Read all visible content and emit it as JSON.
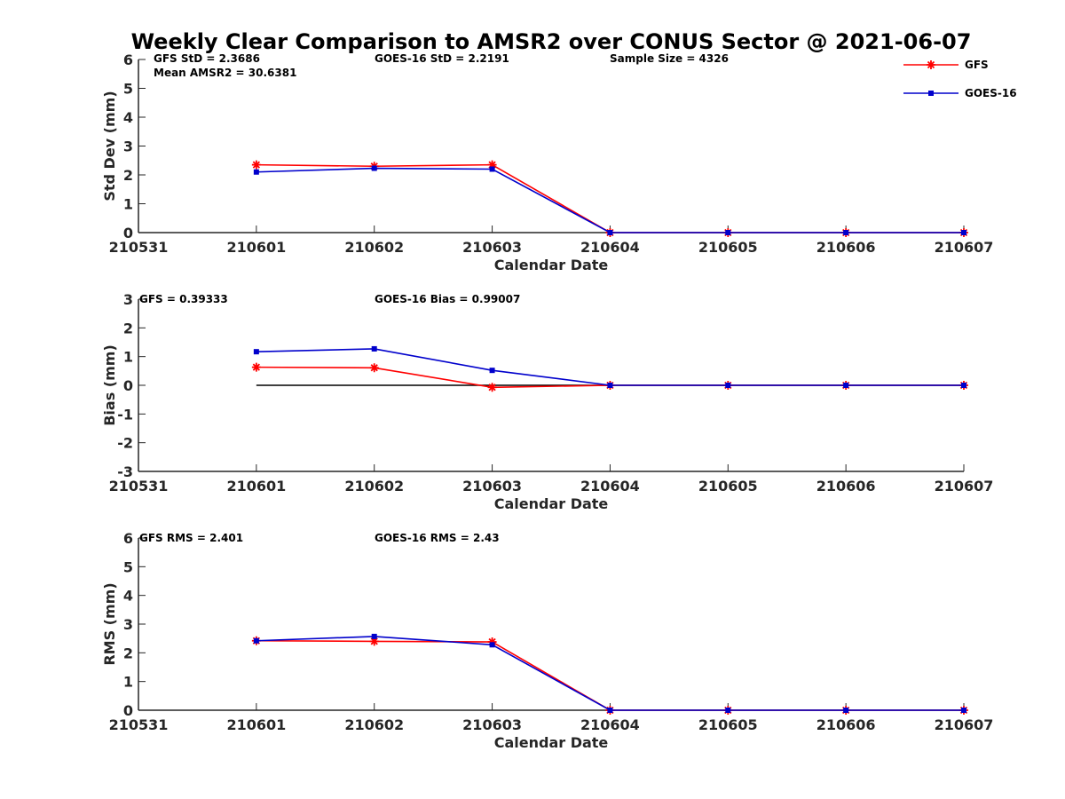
{
  "chart_data": {
    "type": "line",
    "title": "Weekly Clear Comparison to AMSR2 over CONUS Sector @ 2021-06-07",
    "x_ticks": [
      "210531",
      "210601",
      "210602",
      "210603",
      "210604",
      "210605",
      "210606",
      "210607"
    ],
    "legend": {
      "placement": "top-right",
      "entries": [
        "GFS",
        "GOES-16"
      ]
    },
    "colors": {
      "GFS": "#ff0000",
      "GOES-16": "#0000cc",
      "zero_line": "#000000",
      "axes": "#262626"
    },
    "panels": [
      {
        "id": "std",
        "ylabel": "Std Dev (mm)",
        "xlabel": "Calendar Date",
        "ylim": [
          0,
          6
        ],
        "yticks": [
          0,
          1,
          2,
          3,
          4,
          5,
          6
        ],
        "stats": [
          "GFS StD = 2.3686",
          "Mean AMSR2 = 30.6381",
          "GOES-16 StD = 2.2191",
          "Sample Size = 4326"
        ],
        "zero_line": false,
        "series": [
          {
            "name": "GFS",
            "marker": "asterisk",
            "x": [
              1,
              2,
              3,
              4,
              5,
              6,
              7
            ],
            "values": [
              2.35,
              2.3,
              2.35,
              0,
              0,
              0,
              0
            ]
          },
          {
            "name": "GOES-16",
            "marker": "square",
            "x": [
              1,
              2,
              3,
              4,
              5,
              6,
              7
            ],
            "values": [
              2.1,
              2.23,
              2.2,
              0,
              0,
              0,
              0
            ]
          }
        ]
      },
      {
        "id": "bias",
        "ylabel": "Bias (mm)",
        "xlabel": "Calendar Date",
        "ylim": [
          -3,
          3
        ],
        "yticks": [
          -3,
          -2,
          -1,
          0,
          1,
          2,
          3
        ],
        "stats": [
          "GFS = 0.39333",
          "GOES-16 Bias  = 0.99007"
        ],
        "zero_line": true,
        "zero_range": [
          1,
          7
        ],
        "series": [
          {
            "name": "GFS",
            "marker": "asterisk",
            "x": [
              1,
              2,
              3,
              4,
              5,
              6,
              7
            ],
            "values": [
              0.63,
              0.61,
              -0.07,
              0,
              0,
              0,
              0
            ]
          },
          {
            "name": "GOES-16",
            "marker": "square",
            "x": [
              1,
              2,
              3,
              4,
              5,
              6,
              7
            ],
            "values": [
              1.17,
              1.27,
              0.52,
              0,
              0,
              0,
              0
            ]
          }
        ]
      },
      {
        "id": "rms",
        "ylabel": "RMS (mm)",
        "xlabel": "Calendar Date",
        "ylim": [
          0,
          6
        ],
        "yticks": [
          0,
          1,
          2,
          3,
          4,
          5,
          6
        ],
        "stats": [
          "GFS RMS = 2.401",
          "GOES-16 RMS = 2.43"
        ],
        "zero_line": false,
        "series": [
          {
            "name": "GFS",
            "marker": "asterisk",
            "x": [
              1,
              2,
              3,
              4,
              5,
              6,
              7
            ],
            "values": [
              2.42,
              2.4,
              2.38,
              0,
              0,
              0,
              0
            ]
          },
          {
            "name": "GOES-16",
            "marker": "square",
            "x": [
              1,
              2,
              3,
              4,
              5,
              6,
              7
            ],
            "values": [
              2.42,
              2.57,
              2.28,
              0,
              0,
              0,
              0
            ]
          }
        ]
      }
    ]
  }
}
